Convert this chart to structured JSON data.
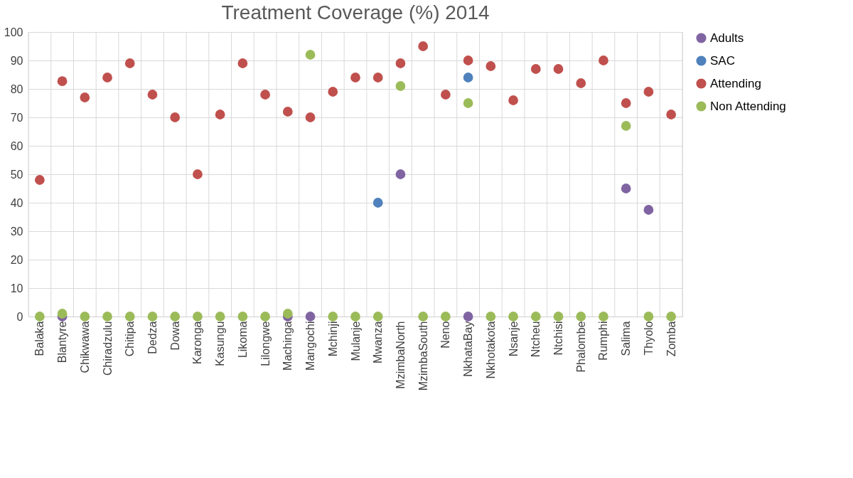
{
  "chart_data": {
    "type": "scatter",
    "title": "Treatment Coverage (%) 2014",
    "categories": [
      "Balaka",
      "Blantyre",
      "Chikwawa",
      "Chiradzulu",
      "Chitipa",
      "Dedza",
      "Dowa",
      "Karonga",
      "Kasungu",
      "Likoma",
      "Lilongwe",
      "Machinga",
      "Mangochi",
      "Mchinji",
      "Mulanje",
      "Mwanza",
      "MzimbaNorth",
      "MzimbaSouth",
      "Neno",
      "NkhataBay",
      "Nkhotakota",
      "Nsanje",
      "Ntcheu",
      "Ntchisi",
      "Phalombe",
      "Rumphi",
      "Salima",
      "Thyolo",
      "Zomba"
    ],
    "series": [
      {
        "name": "Adults",
        "color": "#8064a2",
        "values": [
          null,
          0,
          null,
          null,
          null,
          null,
          null,
          null,
          null,
          null,
          null,
          0,
          0,
          null,
          null,
          null,
          50,
          null,
          null,
          0,
          null,
          null,
          null,
          null,
          null,
          null,
          45,
          37.5,
          null
        ]
      },
      {
        "name": "SAC",
        "color": "#4f81bd",
        "values": [
          null,
          null,
          null,
          null,
          null,
          null,
          null,
          null,
          null,
          null,
          null,
          null,
          null,
          null,
          null,
          40,
          null,
          null,
          null,
          84,
          null,
          null,
          null,
          null,
          null,
          null,
          null,
          null,
          null
        ]
      },
      {
        "name": "Attending",
        "color": "#c0504d",
        "values": [
          48,
          82.7,
          77,
          84,
          89,
          78,
          70,
          50,
          71,
          89,
          78,
          72,
          70,
          79,
          84,
          84,
          89,
          95,
          78,
          90,
          88,
          76,
          87,
          87,
          82,
          90,
          75,
          79,
          71
        ]
      },
      {
        "name": "Non Attending",
        "color": "#9bbb59",
        "values": [
          0,
          1,
          0,
          0,
          0,
          0,
          0,
          0,
          0,
          0,
          0,
          1,
          92,
          0,
          0,
          0,
          81,
          0,
          0,
          75,
          0,
          0,
          0,
          0,
          0,
          0,
          67,
          0,
          0
        ]
      }
    ],
    "ylim": [
      0,
      100
    ],
    "yticks": [
      0,
      10,
      20,
      30,
      40,
      50,
      60,
      70,
      80,
      90,
      100
    ],
    "grid": true,
    "legend": "right",
    "marker": "circle"
  }
}
